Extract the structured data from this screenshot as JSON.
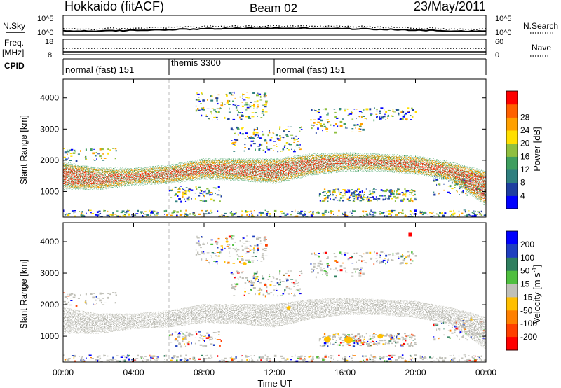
{
  "header": {
    "title": "Hokkaido (fitACF)",
    "beam": "Beam 02",
    "date": "23/May/2011"
  },
  "strip": {
    "nsky_label": "N.Sky",
    "nsearch_label": "N.Search",
    "noise_ticks_left": [
      "10^5",
      "10^0"
    ],
    "noise_ticks_right": [
      "10^5",
      "10^0"
    ],
    "freq_label": "Freq.",
    "freq_unit": "[MHz]",
    "freq_ticks": [
      "18",
      "8"
    ],
    "nave_label": "Nave",
    "nave_ticks": [
      "60",
      "0"
    ],
    "cpid_label": "CPID",
    "cpid_segments": [
      {
        "label": "normal (fast) 151",
        "start_hour": 0,
        "end_hour": 6
      },
      {
        "label": "themis 3300",
        "start_hour": 6,
        "end_hour": 12
      },
      {
        "label": "normal (fast) 151",
        "start_hour": 12,
        "end_hour": 24
      }
    ]
  },
  "x_axis": {
    "label": "Time UT",
    "ticks": [
      "00:00",
      "04:00",
      "08:00",
      "12:00",
      "16:00",
      "20:00",
      "00:00"
    ]
  },
  "y_axis": {
    "label": "Slant Range [km]",
    "ticks": [
      "1000",
      "2000",
      "3000",
      "4000"
    ]
  },
  "colorbars": {
    "power": {
      "label": "Power [dB]",
      "ticks": [
        "4",
        "8",
        "12",
        "16",
        "20",
        "24",
        "28"
      ],
      "colors": [
        "#0000ff",
        "#1f3fa0",
        "#2f7f7f",
        "#3f9f5f",
        "#8fbf3f",
        "#ffdf00",
        "#ffa000",
        "#ff6000",
        "#ff0000"
      ]
    },
    "velocity": {
      "label": "Velocity [m s^-1]",
      "ticks": [
        "200",
        "100",
        "50",
        "15",
        "-15",
        "-50",
        "-100",
        "-200"
      ],
      "colors": [
        "#0000ff",
        "#1f3fbf",
        "#2f7f5f",
        "#4fbf3f",
        "#c0c0b8",
        "#ffbf00",
        "#ff8000",
        "#ff4000",
        "#ff0000"
      ]
    }
  },
  "chart_data": {
    "type": "heatmap",
    "title": "Hokkaido (fitACF)",
    "xlabel": "Time UT",
    "ylabel": "Slant Range [km]",
    "xlim": [
      0,
      24
    ],
    "ylim": [
      180,
      4600
    ],
    "panels": [
      "Power [dB]",
      "Velocity [m s^-1]"
    ],
    "main_band": {
      "time_hours": [
        0,
        2,
        4,
        6,
        8,
        10,
        12,
        14,
        16,
        18,
        20,
        22,
        24
      ],
      "range_lower_km": [
        1100,
        1100,
        1250,
        1300,
        1450,
        1400,
        1300,
        1550,
        1700,
        1700,
        1600,
        1400,
        600
      ],
      "range_upper_km": [
        1900,
        1700,
        1700,
        1800,
        2000,
        2000,
        2000,
        2150,
        2200,
        2150,
        2100,
        1900,
        1600
      ],
      "peak_power_db": 30
    },
    "noise_level": "10^0 to 10^5",
    "frequency_mhz": [
      8,
      18
    ]
  }
}
